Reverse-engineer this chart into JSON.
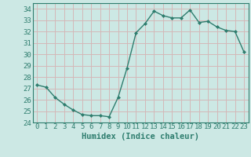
{
  "x": [
    0,
    1,
    2,
    3,
    4,
    5,
    6,
    7,
    8,
    9,
    10,
    11,
    12,
    13,
    14,
    15,
    16,
    17,
    18,
    19,
    20,
    21,
    22,
    23
  ],
  "y": [
    27.3,
    27.1,
    26.2,
    25.6,
    25.1,
    24.7,
    24.6,
    24.6,
    24.5,
    26.2,
    28.8,
    31.9,
    32.7,
    33.8,
    33.4,
    33.2,
    33.2,
    33.9,
    32.8,
    32.9,
    32.4,
    32.1,
    32.0,
    30.2
  ],
  "xlabel": "Humidex (Indice chaleur)",
  "ylim": [
    24,
    34.5
  ],
  "xlim": [
    -0.5,
    23.5
  ],
  "yticks": [
    24,
    25,
    26,
    27,
    28,
    29,
    30,
    31,
    32,
    33,
    34
  ],
  "xticks": [
    0,
    1,
    2,
    3,
    4,
    5,
    6,
    7,
    8,
    9,
    10,
    11,
    12,
    13,
    14,
    15,
    16,
    17,
    18,
    19,
    20,
    21,
    22,
    23
  ],
  "xtick_labels": [
    "0",
    "1",
    "2",
    "3",
    "4",
    "5",
    "6",
    "7",
    "8",
    "9",
    "10",
    "11",
    "12",
    "13",
    "14",
    "15",
    "16",
    "17",
    "18",
    "19",
    "20",
    "21",
    "22",
    "23"
  ],
  "line_color": "#2e7d6e",
  "marker_color": "#2e7d6e",
  "bg_color": "#cce8e4",
  "grid_color": "#d4b8b8",
  "tick_color": "#2e7d6e",
  "label_color": "#2e7d6e",
  "font_size": 6.5,
  "xlabel_fontsize": 7.5
}
